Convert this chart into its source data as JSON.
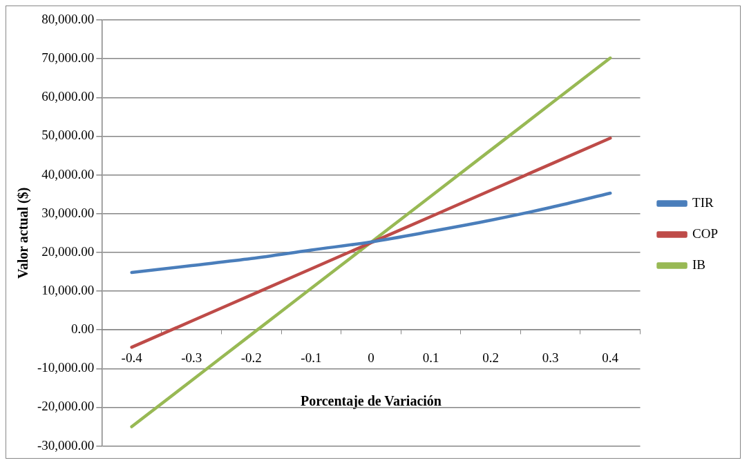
{
  "chart_data": {
    "type": "line",
    "xlabel": "Porcentaje de Variación",
    "ylabel": "Valor actual ($)",
    "categories": [
      "-0.4",
      "-0.3",
      "-0.2",
      "-0.1",
      "0",
      "0.1",
      "0.2",
      "0.3",
      "0.4"
    ],
    "series": [
      {
        "name": "TIR",
        "color": "#4a7ebb",
        "values": [
          14800,
          16600,
          18400,
          20600,
          22700,
          25400,
          28300,
          31600,
          35300
        ]
      },
      {
        "name": "COP",
        "color": "#be4b48",
        "values": [
          -4500,
          2250,
          9000,
          15750,
          22500,
          29250,
          36000,
          42750,
          49500
        ]
      },
      {
        "name": "IB",
        "color": "#98b954",
        "values": [
          -25000,
          -13100,
          -1200,
          10700,
          22600,
          34500,
          46400,
          58300,
          70200
        ]
      }
    ],
    "ylim": [
      -30000,
      80000
    ],
    "yticks": [
      {
        "value": -30000,
        "label": "-30,000.00"
      },
      {
        "value": -20000,
        "label": "-20,000.00"
      },
      {
        "value": -10000,
        "label": "-10,000.00"
      },
      {
        "value": 0,
        "label": "0.00"
      },
      {
        "value": 10000,
        "label": "10,000.00"
      },
      {
        "value": 20000,
        "label": "20,000.00"
      },
      {
        "value": 30000,
        "label": "30,000.00"
      },
      {
        "value": 40000,
        "label": "40,000.00"
      },
      {
        "value": 50000,
        "label": "50,000.00"
      },
      {
        "value": 60000,
        "label": "60,000.00"
      },
      {
        "value": 70000,
        "label": "70,000.00"
      },
      {
        "value": 80000,
        "label": "80,000.00"
      }
    ],
    "grid": "y",
    "legend": "right",
    "marker": "none",
    "line_style": "solid"
  }
}
